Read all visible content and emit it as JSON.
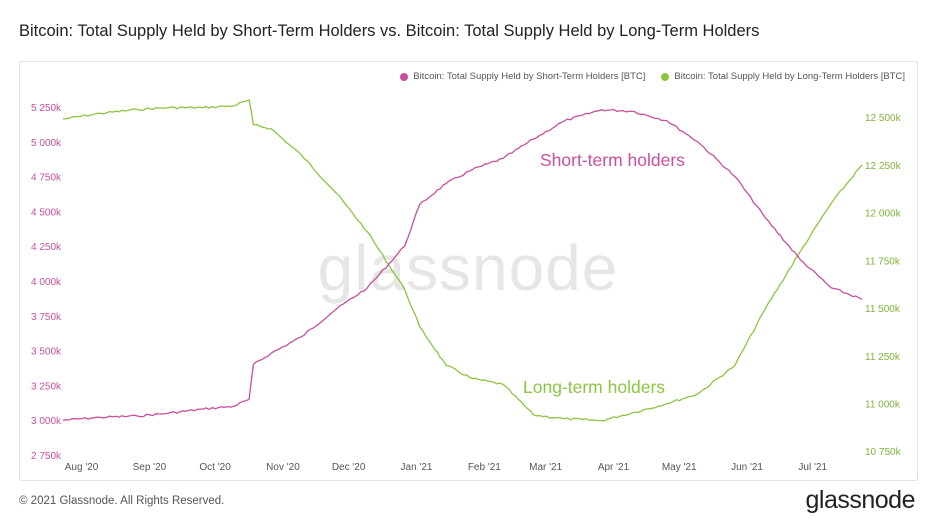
{
  "title": "Bitcoin: Total Supply Held by Short-Term Holders vs. Bitcoin: Total Supply Held by Long-Term Holders",
  "footer": "© 2021 Glassnode. All Rights Reserved.",
  "brand": "glassnode",
  "watermark": "glassnode",
  "colors": {
    "sth": "#c84f9d",
    "lth": "#8cc63f",
    "grid": "#efefef",
    "watermark": "#e6e6e6"
  },
  "chart_data": {
    "type": "line",
    "x_tick_labels": [
      "Aug '20",
      "Sep '20",
      "Oct '20",
      "Nov '20",
      "Dec '20",
      "Jan '21",
      "Feb '21",
      "Mar '21",
      "Apr '21",
      "May '21",
      "Jun '21",
      "Jul '21"
    ],
    "left_axis": {
      "ylim": [
        2750000,
        5300000
      ],
      "ticks": [
        2750000,
        3000000,
        3250000,
        3500000,
        3750000,
        4000000,
        4250000,
        4500000,
        4750000,
        5000000,
        5250000
      ],
      "tick_labels": [
        "2 750k",
        "3 000k",
        "3 250k",
        "3 500k",
        "3 750k",
        "4 000k",
        "4 250k",
        "4 500k",
        "4 750k",
        "5 000k",
        "5 250k"
      ]
    },
    "right_axis": {
      "ylim": [
        10730000,
        12590000
      ],
      "ticks": [
        10750000,
        11000000,
        11250000,
        11500000,
        11750000,
        12000000,
        12250000,
        12500000
      ],
      "tick_labels": [
        "10 750k",
        "11 000k",
        "11 250k",
        "11 500k",
        "11 750k",
        "12 000k",
        "12 250k",
        "12 500k"
      ]
    },
    "series": [
      {
        "name": "Bitcoin: Total Supply Held by Short-Term Holders [BTC]",
        "axis": "left",
        "annotation": "Short-term holders",
        "points": [
          [
            "2020-07-29",
            3000000
          ],
          [
            "2020-08-15",
            3020000
          ],
          [
            "2020-09-01",
            3030000
          ],
          [
            "2020-09-15",
            3050000
          ],
          [
            "2020-10-01",
            3080000
          ],
          [
            "2020-10-15",
            3100000
          ],
          [
            "2020-10-22",
            3150000
          ],
          [
            "2020-10-24",
            3400000
          ],
          [
            "2020-11-01",
            3480000
          ],
          [
            "2020-11-15",
            3600000
          ],
          [
            "2020-12-01",
            3800000
          ],
          [
            "2020-12-15",
            3950000
          ],
          [
            "2021-01-01",
            4250000
          ],
          [
            "2021-01-08",
            4550000
          ],
          [
            "2021-01-20",
            4700000
          ],
          [
            "2021-02-01",
            4800000
          ],
          [
            "2021-02-15",
            4880000
          ],
          [
            "2021-03-01",
            5020000
          ],
          [
            "2021-03-15",
            5150000
          ],
          [
            "2021-04-01",
            5230000
          ],
          [
            "2021-04-15",
            5220000
          ],
          [
            "2021-05-01",
            5150000
          ],
          [
            "2021-05-15",
            5000000
          ],
          [
            "2021-06-01",
            4750000
          ],
          [
            "2021-06-15",
            4450000
          ],
          [
            "2021-07-01",
            4150000
          ],
          [
            "2021-07-15",
            3950000
          ],
          [
            "2021-07-29",
            3870000
          ]
        ]
      },
      {
        "name": "Bitcoin: Total Supply Held by Long-Term Holders [BTC]",
        "axis": "right",
        "annotation": "Long-term holders",
        "points": [
          [
            "2020-07-29",
            12490000
          ],
          [
            "2020-08-15",
            12520000
          ],
          [
            "2020-09-01",
            12540000
          ],
          [
            "2020-09-15",
            12550000
          ],
          [
            "2020-10-01",
            12550000
          ],
          [
            "2020-10-15",
            12560000
          ],
          [
            "2020-10-22",
            12590000
          ],
          [
            "2020-10-24",
            12460000
          ],
          [
            "2020-11-01",
            12440000
          ],
          [
            "2020-11-15",
            12300000
          ],
          [
            "2020-12-01",
            12100000
          ],
          [
            "2020-12-15",
            11900000
          ],
          [
            "2021-01-01",
            11600000
          ],
          [
            "2021-01-08",
            11400000
          ],
          [
            "2021-01-20",
            11200000
          ],
          [
            "2021-02-01",
            11130000
          ],
          [
            "2021-02-15",
            11100000
          ],
          [
            "2021-03-01",
            10940000
          ],
          [
            "2021-03-15",
            10920000
          ],
          [
            "2021-04-01",
            10910000
          ],
          [
            "2021-04-15",
            10950000
          ],
          [
            "2021-05-01",
            11000000
          ],
          [
            "2021-05-15",
            11050000
          ],
          [
            "2021-06-01",
            11200000
          ],
          [
            "2021-06-15",
            11500000
          ],
          [
            "2021-07-01",
            11800000
          ],
          [
            "2021-07-15",
            12050000
          ],
          [
            "2021-07-29",
            12250000
          ]
        ]
      }
    ],
    "legend": "top-right",
    "grid": false
  }
}
